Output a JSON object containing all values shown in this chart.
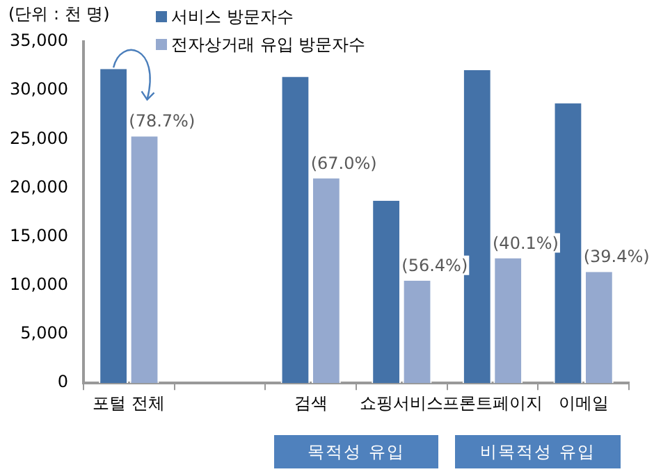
{
  "chart_data": {
    "type": "bar",
    "ylabel": "(단위 : 천 명)",
    "categories": [
      "포털 전체",
      null,
      "검색",
      "쇼핑서비스",
      "프론트페이지",
      "이메일"
    ],
    "series": [
      {
        "name": "서비스 방문자수",
        "color": "#4472a8",
        "values": [
          32200,
          null,
          31400,
          18700,
          32100,
          28700
        ]
      },
      {
        "name": "전자상거래 유입 방문자수",
        "color": "#95a9cf",
        "values": [
          25300,
          null,
          21000,
          10500,
          12800,
          11400
        ]
      }
    ],
    "ylim": [
      0,
      35000
    ],
    "yticks": [
      {
        "value": 0,
        "label": "0"
      },
      {
        "value": 5000,
        "label": "5,000"
      },
      {
        "value": 10000,
        "label": "10,000"
      },
      {
        "value": 15000,
        "label": "15,000"
      },
      {
        "value": 20000,
        "label": "20,000"
      },
      {
        "value": 25000,
        "label": "25,000"
      },
      {
        "value": 30000,
        "label": "30,000"
      },
      {
        "value": 35000,
        "label": "35,000"
      }
    ],
    "grid": false,
    "legend": "top",
    "annotations": [
      "목적성 유입",
      "비목적성 유입",
      {
        "text": "(78.7%)",
        "x": "포털 전체",
        "y": 25300
      },
      {
        "text": "(67.0%)",
        "x": "검색",
        "y": 21000
      },
      {
        "text": "(56.4%)",
        "x": "쇼핑서비스",
        "y": 10500
      },
      {
        "text": "(40.1%)",
        "x": "프론트페이지",
        "y": 12800
      },
      {
        "text": "(39.4%)",
        "x": "이메일",
        "y": 11400
      }
    ]
  }
}
